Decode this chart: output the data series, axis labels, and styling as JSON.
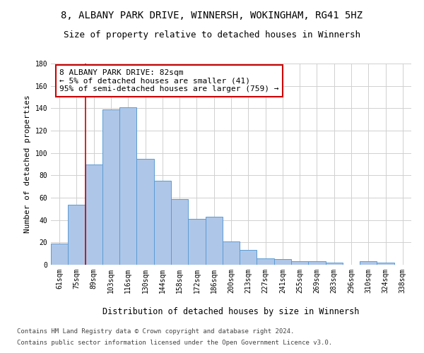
{
  "title": "8, ALBANY PARK DRIVE, WINNERSH, WOKINGHAM, RG41 5HZ",
  "subtitle": "Size of property relative to detached houses in Winnersh",
  "xlabel": "Distribution of detached houses by size in Winnersh",
  "ylabel": "Number of detached properties",
  "categories": [
    "61sqm",
    "75sqm",
    "89sqm",
    "103sqm",
    "116sqm",
    "130sqm",
    "144sqm",
    "158sqm",
    "172sqm",
    "186sqm",
    "200sqm",
    "213sqm",
    "227sqm",
    "241sqm",
    "255sqm",
    "269sqm",
    "283sqm",
    "296sqm",
    "310sqm",
    "324sqm",
    "338sqm"
  ],
  "values": [
    19,
    54,
    90,
    139,
    141,
    95,
    75,
    59,
    41,
    43,
    21,
    13,
    6,
    5,
    3,
    3,
    2,
    0,
    3,
    2,
    0
  ],
  "bar_color": "#aec6e8",
  "bar_edge_color": "#5b9bd5",
  "background_color": "#ffffff",
  "grid_color": "#d0d0d0",
  "annotation_box_color": "#cc0000",
  "vline_color": "#cc0000",
  "annotation_line1": "8 ALBANY PARK DRIVE: 82sqm",
  "annotation_line2": "← 5% of detached houses are smaller (41)",
  "annotation_line3": "95% of semi-detached houses are larger (759) →",
  "ylim": [
    0,
    180
  ],
  "yticks": [
    0,
    20,
    40,
    60,
    80,
    100,
    120,
    140,
    160,
    180
  ],
  "footer_line1": "Contains HM Land Registry data © Crown copyright and database right 2024.",
  "footer_line2": "Contains public sector information licensed under the Open Government Licence v3.0.",
  "title_fontsize": 10,
  "subtitle_fontsize": 9,
  "annotation_fontsize": 8,
  "tick_fontsize": 7,
  "ylabel_fontsize": 8,
  "xlabel_fontsize": 8.5,
  "footer_fontsize": 6.5
}
